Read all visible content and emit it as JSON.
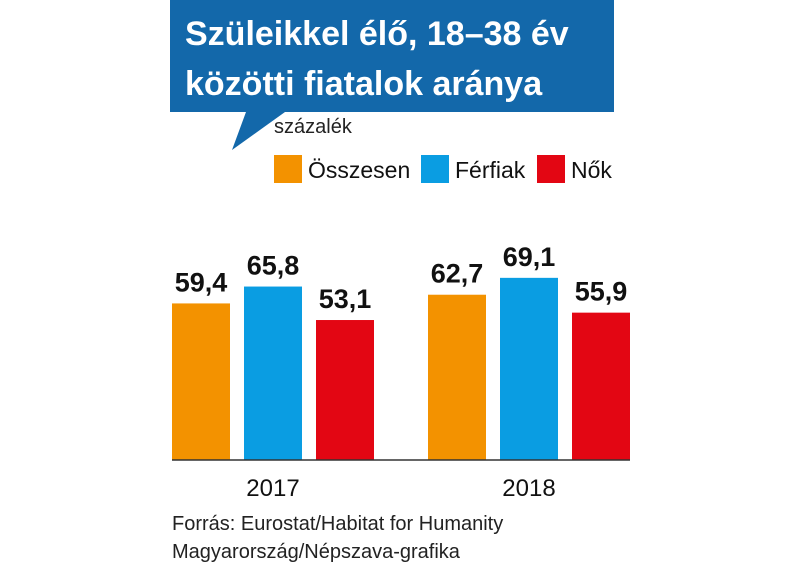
{
  "chart_data": {
    "type": "bar",
    "title_lines": [
      "Szüleikkel élő, 18–38 év",
      "közötti fiatalok aránya"
    ],
    "unit": "százalék",
    "categories": [
      "2017",
      "2018"
    ],
    "series": [
      {
        "name": "Összesen",
        "values": [
          59.4,
          62.7
        ],
        "labels": [
          "59,4",
          "62,7"
        ],
        "color": "#f39200"
      },
      {
        "name": "Férfiak",
        "values": [
          65.8,
          69.1
        ],
        "labels": [
          "65,8",
          "69,1"
        ],
        "color": "#0a9de2"
      },
      {
        "name": "Nők",
        "values": [
          53.1,
          55.9
        ],
        "labels": [
          "53,1",
          "55,9"
        ],
        "color": "#e30613"
      }
    ],
    "ylim": [
      0,
      70
    ],
    "grid": false,
    "legend_position": "top"
  },
  "source_lines": [
    "Forrás: Eurostat/Habitat for Humanity",
    "Magyarország/Népszava-grafika"
  ],
  "title_box_color": "#1368aa"
}
